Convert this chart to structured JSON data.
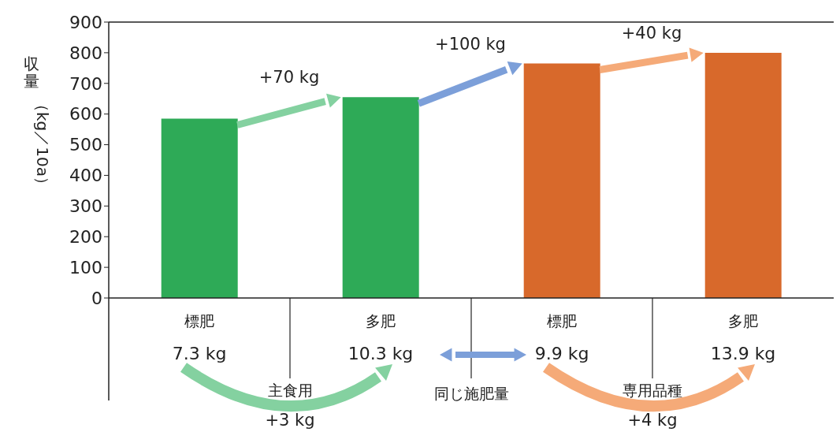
{
  "chart_data": {
    "type": "bar",
    "ylabel": "収量（kg／10a）",
    "categories": [
      "標肥\n7.3 kg",
      "多肥\n10.3 kg",
      "標肥\n9.9 kg",
      "多肥\n13.9 kg"
    ],
    "values": [
      585,
      655,
      765,
      800
    ],
    "colors": [
      "#2eaa57",
      "#2eaa57",
      "#d8692b",
      "#d8692b"
    ],
    "ylim": [
      0,
      900
    ],
    "yticks": [
      0,
      100,
      200,
      300,
      400,
      500,
      600,
      700,
      800,
      900
    ],
    "grid": false,
    "legend": false,
    "annotations": [
      "+70 kg",
      "+100 kg",
      "+40 kg",
      "主食用",
      "+3 kg",
      "同じ施肥量",
      "専用品種",
      "+4 kg"
    ]
  }
}
